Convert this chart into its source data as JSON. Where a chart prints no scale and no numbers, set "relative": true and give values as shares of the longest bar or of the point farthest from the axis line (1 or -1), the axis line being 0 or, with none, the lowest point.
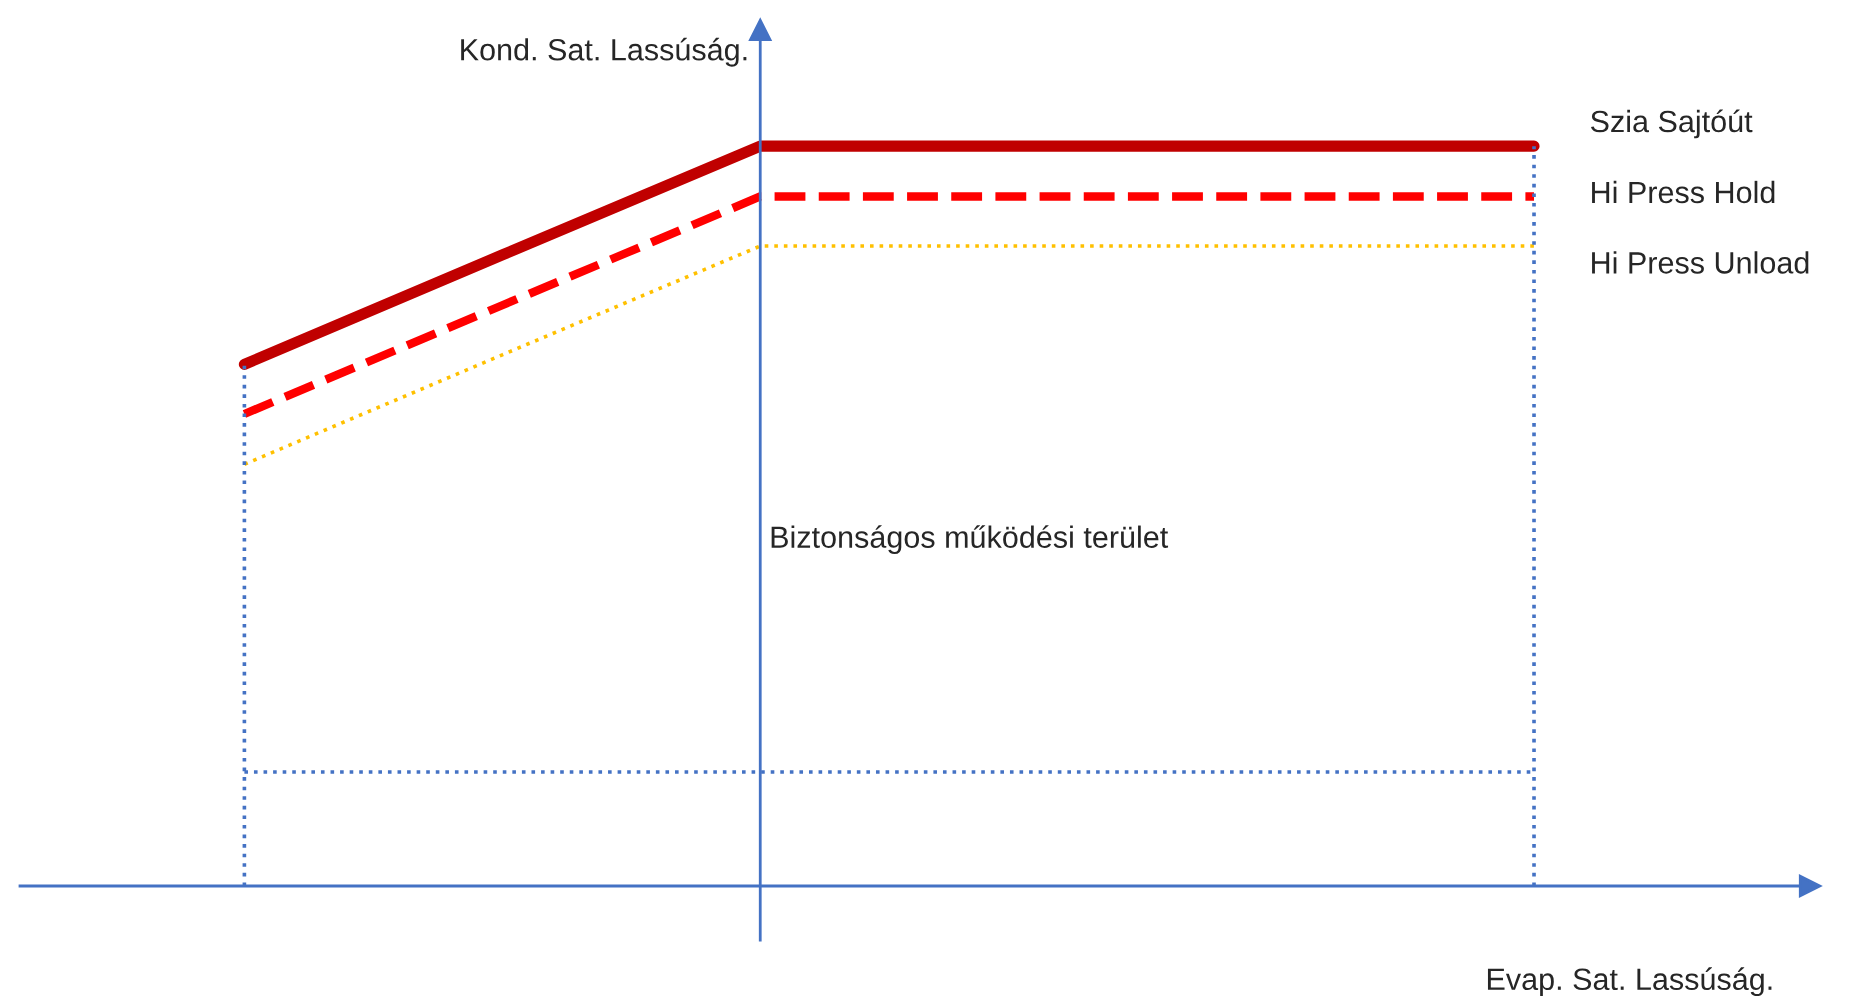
{
  "chart_data": {
    "type": "line",
    "relative": true,
    "xlabel": "Evap. Sat. Lassúság.",
    "ylabel": "Kond. Sat. Lassúság.",
    "annotations": [
      "Biztonságos működési terület"
    ],
    "legend": false,
    "marker": "none",
    "categories": [
      null,
      null,
      null,
      null,
      null,
      null
    ],
    "series": [
      {
        "name": "Szia Sajtóút",
        "color": "#c00000",
        "line_style": "solid",
        "values": [
          0.705,
          0.853,
          1,
          1,
          1,
          1
        ]
      },
      {
        "name": "Hi Press Hold",
        "color": "#ff0000",
        "line_style": "dashed",
        "values": [
          0.638,
          0.785,
          0.932,
          0.932,
          0.932,
          0.932
        ]
      },
      {
        "name": "Hi Press Unload",
        "color": "#ffc000",
        "line_style": "dotted",
        "values": [
          0.57,
          0.718,
          0.865,
          0.865,
          0.865,
          0.865
        ]
      }
    ],
    "ref_lines": [
      {
        "axis": "y",
        "value": 0.154,
        "color": "#4472c4",
        "line_style": "dotted"
      }
    ]
  }
}
